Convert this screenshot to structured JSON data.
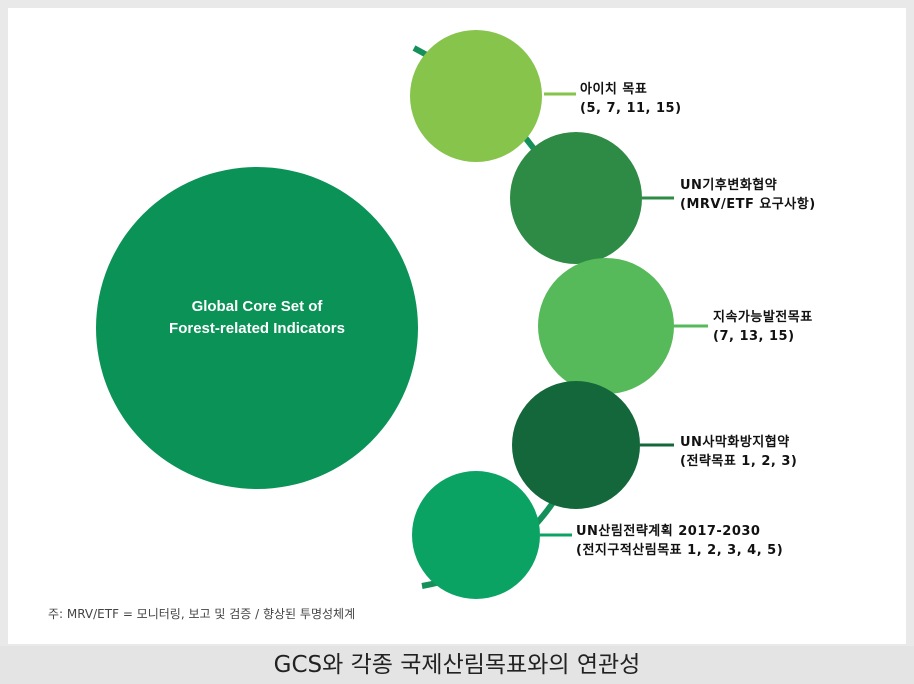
{
  "colors": {
    "main_circle": "#0a9257",
    "connector": "#15905a",
    "goal_colors": [
      "#86c44b",
      "#2e8b45",
      "#56b95a",
      "#13673a",
      "#0ba364"
    ]
  },
  "main": {
    "line1": "Global Core Set of",
    "line2": "Forest-related Indicators"
  },
  "goals": [
    {
      "line1": "아이치 목표",
      "line2": "(5, 7, 11, 15)"
    },
    {
      "line1": "UN기후변화협약",
      "line2": "(MRV/ETF 요구사항)"
    },
    {
      "line1": "지속가능발전목표",
      "line2": "(7, 13, 15)"
    },
    {
      "line1": "UN사막화방지협약",
      "line2": "(전략목표 1, 2, 3)"
    },
    {
      "line1": "UN산림전략계획 2017-2030",
      "line2": "(전지구적산림목표 1, 2, 3, 4, 5)"
    }
  ],
  "footnote": "주: MRV/ETF = 모니터링, 보고 및 검증 / 향상된 투명성체계",
  "caption": "GCS와 각종 국제산림목표와의 연관성"
}
